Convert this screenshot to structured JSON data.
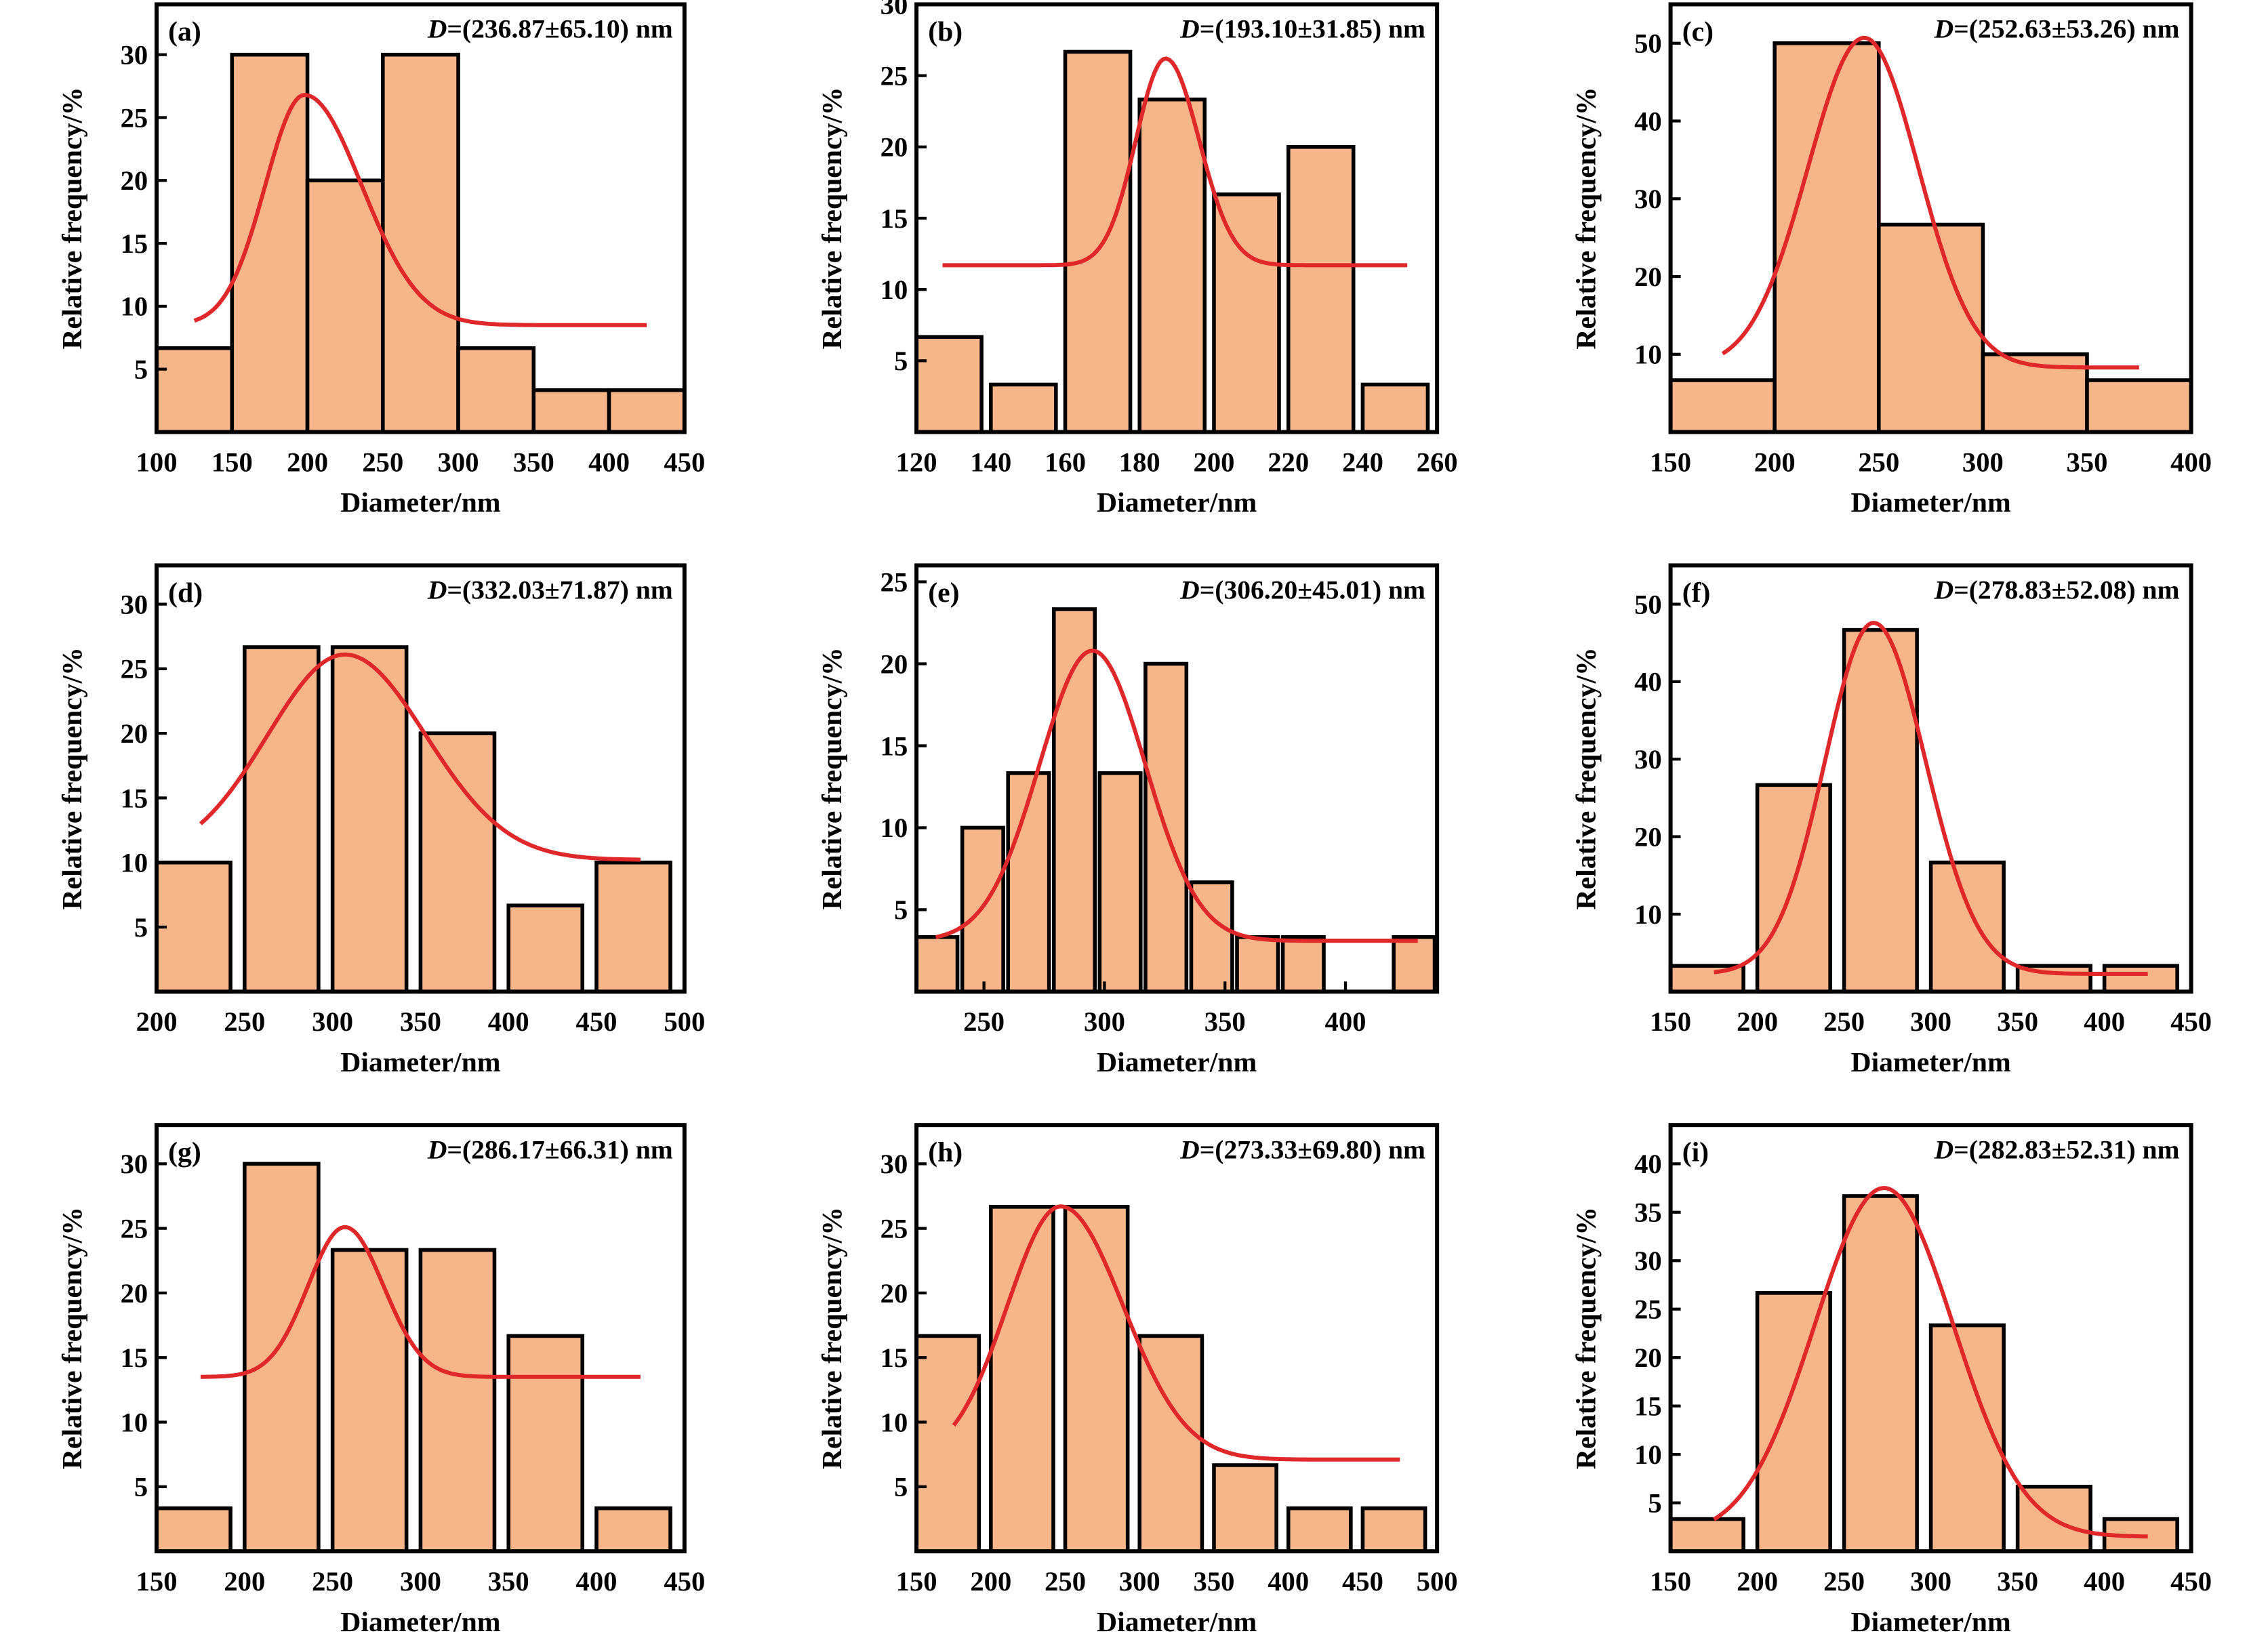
{
  "chart_data": [
    {
      "type": "bar",
      "panel_label": "(a)",
      "annotation": "=(236.87±65.10) nm",
      "annotation_symbol": "D",
      "xlabel": "Diameter/nm",
      "ylabel": "Relative frequency/%",
      "xlim": [
        100,
        450
      ],
      "ylim": [
        0,
        34
      ],
      "xticks": [
        100,
        150,
        200,
        250,
        300,
        350,
        400,
        450
      ],
      "yticks": [
        5,
        10,
        15,
        20,
        25,
        30
      ],
      "bars": [
        {
          "x0": 100,
          "x1": 150,
          "value": 6.67
        },
        {
          "x0": 150,
          "x1": 200,
          "value": 30
        },
        {
          "x0": 200,
          "x1": 250,
          "value": 20
        },
        {
          "x0": 250,
          "x1": 300,
          "value": 30
        },
        {
          "x0": 300,
          "x1": 350,
          "value": 6.67
        },
        {
          "x0": 350,
          "x1": 400,
          "value": 3.33
        },
        {
          "x0": 400,
          "x1": 450,
          "value": 3.33
        }
      ],
      "fit_curve": {
        "baseline": 8.5,
        "amplitude": 18.3,
        "center": 198,
        "sigma_left": 26,
        "sigma_right": 38,
        "x_range": [
          125,
          425
        ]
      },
      "colors": {
        "bar_fill": "#f7b68a",
        "curve": "#e0272a"
      }
    },
    {
      "type": "bar",
      "panel_label": "(b)",
      "annotation": "=(193.10±31.85) nm",
      "annotation_symbol": "D",
      "xlabel": "Diameter/nm",
      "ylabel": "Relative frequency/%",
      "xlim": [
        120,
        260
      ],
      "ylim": [
        0,
        30
      ],
      "xticks": [
        120,
        140,
        160,
        180,
        200,
        220,
        240,
        260
      ],
      "yticks": [
        5,
        10,
        15,
        20,
        25,
        30
      ],
      "bars": [
        {
          "x0": 120,
          "x1": 137.5,
          "value": 6.67
        },
        {
          "x0": 140,
          "x1": 157.5,
          "value": 3.33
        },
        {
          "x0": 160,
          "x1": 177.5,
          "value": 26.67
        },
        {
          "x0": 180,
          "x1": 197.5,
          "value": 23.33
        },
        {
          "x0": 200,
          "x1": 217.5,
          "value": 16.67
        },
        {
          "x0": 220,
          "x1": 237.5,
          "value": 20
        },
        {
          "x0": 240,
          "x1": 257.5,
          "value": 3.33
        }
      ],
      "fit_curve": {
        "baseline": 11.7,
        "amplitude": 14.5,
        "center": 187,
        "sigma_left": 8,
        "sigma_right": 9,
        "x_range": [
          127,
          252
        ]
      },
      "colors": {
        "bar_fill": "#f7b68a",
        "curve": "#e0272a"
      }
    },
    {
      "type": "bar",
      "panel_label": "(c)",
      "annotation": "=(252.63±53.26) nm",
      "annotation_symbol": "D",
      "xlabel": "Diameter/nm",
      "ylabel": "Relative frequency/%",
      "xlim": [
        150,
        400
      ],
      "ylim": [
        0,
        55
      ],
      "xticks": [
        150,
        200,
        250,
        300,
        350,
        400
      ],
      "yticks": [
        10,
        20,
        30,
        40,
        50
      ],
      "bars": [
        {
          "x0": 150,
          "x1": 200,
          "value": 6.67
        },
        {
          "x0": 200,
          "x1": 250,
          "value": 50
        },
        {
          "x0": 250,
          "x1": 300,
          "value": 26.67
        },
        {
          "x0": 300,
          "x1": 350,
          "value": 10
        },
        {
          "x0": 350,
          "x1": 400,
          "value": 6.67
        }
      ],
      "fit_curve": {
        "baseline": 8.3,
        "amplitude": 42.4,
        "center": 243,
        "sigma_left": 27,
        "sigma_right": 26,
        "x_range": [
          175,
          375
        ]
      },
      "colors": {
        "bar_fill": "#f7b68a",
        "curve": "#e0272a"
      }
    },
    {
      "type": "bar",
      "panel_label": "(d)",
      "annotation": "=(332.03±71.87) nm",
      "annotation_symbol": "D",
      "xlabel": "Diameter/nm",
      "ylabel": "Relative frequency/%",
      "xlim": [
        200,
        500
      ],
      "ylim": [
        0,
        33
      ],
      "xticks": [
        200,
        250,
        300,
        350,
        400,
        450,
        500
      ],
      "yticks": [
        5,
        10,
        15,
        20,
        25,
        30
      ],
      "bars": [
        {
          "x0": 200,
          "x1": 242,
          "value": 10
        },
        {
          "x0": 250,
          "x1": 292,
          "value": 26.67
        },
        {
          "x0": 300,
          "x1": 342,
          "value": 26.67
        },
        {
          "x0": 350,
          "x1": 392,
          "value": 20
        },
        {
          "x0": 400,
          "x1": 442,
          "value": 6.67
        },
        {
          "x0": 450,
          "x1": 492,
          "value": 10
        }
      ],
      "fit_curve": {
        "baseline": 10.2,
        "amplitude": 15.9,
        "center": 307,
        "sigma_left": 44,
        "sigma_right": 46,
        "x_range": [
          225,
          475
        ]
      },
      "colors": {
        "bar_fill": "#f7b68a",
        "curve": "#e0272a"
      }
    },
    {
      "type": "bar",
      "panel_label": "(e)",
      "annotation": "=(306.20±45.01) nm",
      "annotation_symbol": "D",
      "xlabel": "Diameter/nm",
      "ylabel": "Relative frequency/%",
      "xlim": [
        222,
        438
      ],
      "ylim": [
        0,
        26
      ],
      "xticks": [
        250,
        300,
        350,
        400
      ],
      "yticks": [
        5,
        10,
        15,
        20,
        25
      ],
      "bars": [
        {
          "x0": 222,
          "x1": 239,
          "value": 3.33
        },
        {
          "x0": 241,
          "x1": 258,
          "value": 10
        },
        {
          "x0": 260,
          "x1": 277,
          "value": 13.33
        },
        {
          "x0": 279,
          "x1": 296,
          "value": 23.33
        },
        {
          "x0": 298,
          "x1": 315,
          "value": 13.33
        },
        {
          "x0": 317,
          "x1": 334,
          "value": 20
        },
        {
          "x0": 336,
          "x1": 353,
          "value": 6.67
        },
        {
          "x0": 355,
          "x1": 372,
          "value": 3.33
        },
        {
          "x0": 374,
          "x1": 391,
          "value": 3.33
        },
        {
          "x0": 420,
          "x1": 437,
          "value": 3.33
        }
      ],
      "fit_curve": {
        "baseline": 3.1,
        "amplitude": 17.7,
        "center": 295,
        "sigma_left": 22,
        "sigma_right": 22,
        "x_range": [
          230,
          430
        ]
      },
      "colors": {
        "bar_fill": "#f7b68a",
        "curve": "#e0272a"
      }
    },
    {
      "type": "bar",
      "panel_label": "(f)",
      "annotation": "=(278.83±52.08) nm",
      "annotation_symbol": "D",
      "xlabel": "Diameter/nm",
      "ylabel": "Relative frequency/%",
      "xlim": [
        150,
        450
      ],
      "ylim": [
        0,
        55
      ],
      "xticks": [
        150,
        200,
        250,
        300,
        350,
        400,
        450
      ],
      "yticks": [
        10,
        20,
        30,
        40,
        50
      ],
      "bars": [
        {
          "x0": 150,
          "x1": 192,
          "value": 3.33
        },
        {
          "x0": 200,
          "x1": 242,
          "value": 26.67
        },
        {
          "x0": 250,
          "x1": 292,
          "value": 46.67
        },
        {
          "x0": 300,
          "x1": 342,
          "value": 16.67
        },
        {
          "x0": 350,
          "x1": 392,
          "value": 3.33
        },
        {
          "x0": 400,
          "x1": 442,
          "value": 3.33
        }
      ],
      "fit_curve": {
        "baseline": 2.3,
        "amplitude": 45.3,
        "center": 267,
        "sigma_left": 28,
        "sigma_right": 30,
        "x_range": [
          175,
          425
        ]
      },
      "colors": {
        "bar_fill": "#f7b68a",
        "curve": "#e0272a"
      }
    },
    {
      "type": "bar",
      "panel_label": "(g)",
      "annotation": "=(286.17±66.31) nm",
      "annotation_symbol": "D",
      "xlabel": "Diameter/nm",
      "ylabel": "Relative frequency/%",
      "xlim": [
        150,
        450
      ],
      "ylim": [
        0,
        33
      ],
      "xticks": [
        150,
        200,
        250,
        300,
        350,
        400,
        450
      ],
      "yticks": [
        5,
        10,
        15,
        20,
        25,
        30
      ],
      "bars": [
        {
          "x0": 150,
          "x1": 192,
          "value": 3.33
        },
        {
          "x0": 200,
          "x1": 242,
          "value": 30
        },
        {
          "x0": 250,
          "x1": 292,
          "value": 23.33
        },
        {
          "x0": 300,
          "x1": 342,
          "value": 23.33
        },
        {
          "x0": 350,
          "x1": 392,
          "value": 16.67
        },
        {
          "x0": 400,
          "x1": 442,
          "value": 3.33
        }
      ],
      "fit_curve": {
        "baseline": 13.5,
        "amplitude": 11.6,
        "center": 257,
        "sigma_left": 21,
        "sigma_right": 22,
        "x_range": [
          175,
          425
        ]
      },
      "colors": {
        "bar_fill": "#f7b68a",
        "curve": "#e0272a"
      }
    },
    {
      "type": "bar",
      "panel_label": "(h)",
      "annotation": "=(273.33±69.80) nm",
      "annotation_symbol": "D",
      "xlabel": "Diameter/nm",
      "ylabel": "Relative frequency/%",
      "xlim": [
        150,
        500
      ],
      "ylim": [
        0,
        33
      ],
      "xticks": [
        150,
        200,
        250,
        300,
        350,
        400,
        450,
        500
      ],
      "yticks": [
        5,
        10,
        15,
        20,
        25,
        30
      ],
      "bars": [
        {
          "x0": 150,
          "x1": 192,
          "value": 16.67
        },
        {
          "x0": 200,
          "x1": 242,
          "value": 26.67
        },
        {
          "x0": 250,
          "x1": 292,
          "value": 26.67
        },
        {
          "x0": 300,
          "x1": 342,
          "value": 16.67
        },
        {
          "x0": 350,
          "x1": 392,
          "value": 6.67
        },
        {
          "x0": 400,
          "x1": 442,
          "value": 3.33
        },
        {
          "x0": 450,
          "x1": 492,
          "value": 3.33
        }
      ],
      "fit_curve": {
        "baseline": 7.1,
        "amplitude": 19.6,
        "center": 247,
        "sigma_left": 36,
        "sigma_right": 42,
        "x_range": [
          175,
          475
        ]
      },
      "colors": {
        "bar_fill": "#f7b68a",
        "curve": "#e0272a"
      }
    },
    {
      "type": "bar",
      "panel_label": "(i)",
      "annotation": "=(282.83±52.31) nm",
      "annotation_symbol": "D",
      "xlabel": "Diameter/nm",
      "ylabel": "Relative frequency/%",
      "xlim": [
        150,
        450
      ],
      "ylim": [
        0,
        44
      ],
      "xticks": [
        150,
        200,
        250,
        300,
        350,
        400,
        450
      ],
      "yticks": [
        5,
        10,
        15,
        20,
        25,
        30,
        35,
        40
      ],
      "bars": [
        {
          "x0": 150,
          "x1": 192,
          "value": 3.33
        },
        {
          "x0": 200,
          "x1": 242,
          "value": 26.67
        },
        {
          "x0": 250,
          "x1": 292,
          "value": 36.67
        },
        {
          "x0": 300,
          "x1": 342,
          "value": 23.33
        },
        {
          "x0": 350,
          "x1": 392,
          "value": 6.67
        },
        {
          "x0": 400,
          "x1": 442,
          "value": 3.33
        }
      ],
      "fit_curve": {
        "baseline": 1.5,
        "amplitude": 36.0,
        "center": 273,
        "sigma_left": 40,
        "sigma_right": 40,
        "x_range": [
          175,
          425
        ]
      },
      "colors": {
        "bar_fill": "#f7b68a",
        "curve": "#e0272a"
      }
    }
  ]
}
